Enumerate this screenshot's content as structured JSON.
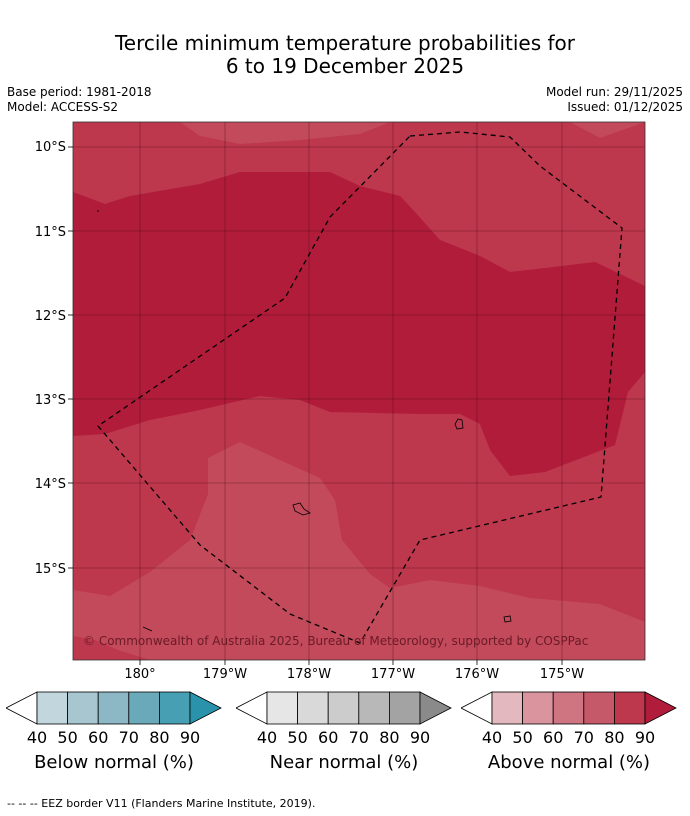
{
  "header": {
    "title_line1": "Tercile minimum temperature probabilities for",
    "title_line2": "6 to 19 December 2025",
    "base_period": "Base period: 1981-2018",
    "model": "Model: ACCESS-S2",
    "model_run": "Model run: 29/11/2025",
    "issued": "Issued: 01/12/2025"
  },
  "map": {
    "lat_labels": [
      "10°S",
      "11°S",
      "12°S",
      "13°S",
      "14°S",
      "15°S"
    ],
    "lon_labels": [
      "180°",
      "179°W",
      "178°W",
      "177°W",
      "176°W",
      "175°W"
    ],
    "copyright": "© Commonwealth of Australia 2025, Bureau of Meteorology, supported by COSPPac",
    "colors": {
      "above_80_90": "#b01c3a",
      "above_70_80": "#bd374d",
      "above_60_70": "#c24a5a"
    }
  },
  "colorbars": [
    {
      "id": "below",
      "label": "Below normal (%)",
      "ticks": [
        "40",
        "50",
        "60",
        "70",
        "80",
        "90"
      ],
      "colors": [
        "#c2d6de",
        "#a8c6cf",
        "#8cb8c6",
        "#6aa9ba",
        "#479fb3",
        "#2b92ab"
      ]
    },
    {
      "id": "near",
      "label": "Near normal (%)",
      "ticks": [
        "40",
        "50",
        "60",
        "70",
        "80",
        "90"
      ],
      "colors": [
        "#e6e6e6",
        "#d9d9d9",
        "#cccccc",
        "#b8b8b8",
        "#a3a3a3",
        "#8a8a8a"
      ]
    },
    {
      "id": "above",
      "label": "Above normal (%)",
      "ticks": [
        "40",
        "50",
        "60",
        "70",
        "80",
        "90"
      ],
      "colors": [
        "#e3b9bf",
        "#d9949e",
        "#cf7582",
        "#c55869",
        "#bd374d",
        "#b01c3a"
      ]
    }
  ],
  "footer": {
    "eez_note": "--  --  -- EEZ border V11 (Flanders Marine Institute, 2019)."
  }
}
